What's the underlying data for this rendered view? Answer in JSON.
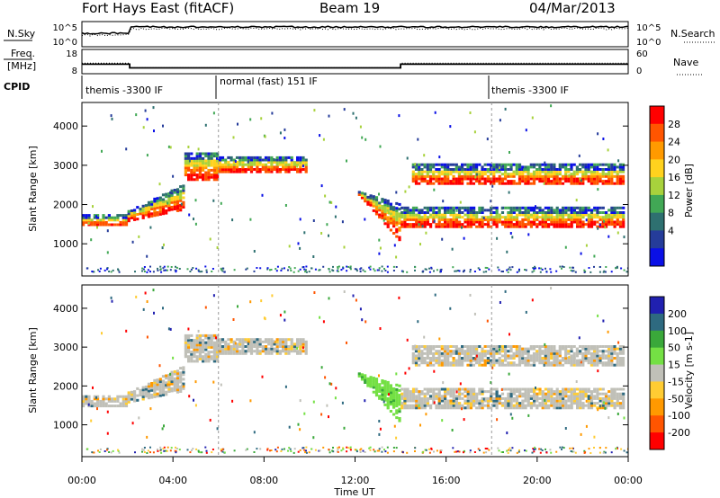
{
  "chart_data": {
    "type": "heatmap",
    "header": {
      "title": "Fort Hays East (fitACF)",
      "beam": "Beam 19",
      "date": "04/Mar/2013"
    },
    "x_axis": {
      "label": "Time UT",
      "ticks": [
        "00:00",
        "04:00",
        "08:00",
        "12:00",
        "16:00",
        "20:00",
        "00:00"
      ],
      "range_hours": [
        0,
        24
      ]
    },
    "noise_panel": {
      "left_label": "N.Sky",
      "right_label": "N.Search",
      "left_ticks": [
        "10^5",
        "10^0"
      ],
      "right_ticks": [
        "10^5",
        "10^0"
      ]
    },
    "freq_panel": {
      "left_label_1": "Freq.",
      "left_label_2": "[MHz]",
      "right_label": "Nave",
      "left_ticks": [
        "18",
        "8"
      ],
      "right_ticks": [
        "60",
        "0"
      ],
      "freq_steps": [
        {
          "start_h": 0,
          "end_h": 2.1,
          "mhz": 12.0
        },
        {
          "start_h": 2.1,
          "end_h": 14.0,
          "mhz": 10.3
        },
        {
          "start_h": 14.0,
          "end_h": 24,
          "mhz": 12.0
        }
      ],
      "nave_steps": [
        {
          "start_h": 0,
          "end_h": 2.1,
          "value": 27
        },
        {
          "start_h": 2.1,
          "end_h": 14.0,
          "value": 14
        },
        {
          "start_h": 14.0,
          "end_h": 24,
          "value": 27
        }
      ]
    },
    "cpid": {
      "label": "CPID",
      "segments": [
        {
          "start_h": 0,
          "end_h": 6.0,
          "text": "themis -3300 IF"
        },
        {
          "start_h": 6.0,
          "end_h": 18.0,
          "text": "normal (fast) 151 IF"
        },
        {
          "start_h": 18.0,
          "end_h": 24,
          "text": "themis -3300 IF"
        }
      ]
    },
    "panels": [
      {
        "name": "power",
        "ylabel": "Slant Range [km]",
        "yticks": [
          1000,
          2000,
          3000,
          4000
        ],
        "ylim": [
          180,
          4600
        ],
        "colorbar_label": "Power [dB]",
        "colorbar_ticks": [
          "28",
          "24",
          "20",
          "16",
          "12",
          "8",
          "4"
        ],
        "colorbar_colors": [
          "#ff0000",
          "#ff5500",
          "#ff9a00",
          "#ffd21e",
          "#a8d23c",
          "#41a855",
          "#2e7070",
          "#253c9a",
          "#0a10e6"
        ]
      },
      {
        "name": "velocity",
        "ylabel": "Slant Range [km]",
        "yticks": [
          1000,
          2000,
          3000,
          4000
        ],
        "ylim": [
          180,
          4600
        ],
        "colorbar_label": "Velocity [m s-1]",
        "colorbar_ticks": [
          "200",
          "100",
          "50",
          "15",
          "-15",
          "-50",
          "-100",
          "-200"
        ],
        "colorbar_colors": [
          "#2020b0",
          "#2e6a80",
          "#3aa83a",
          "#74e044",
          "#c0c0b8",
          "#ffcc33",
          "#ff9900",
          "#ff5500",
          "#ff0000"
        ]
      }
    ],
    "echo_bands": [
      {
        "start_h": 0.0,
        "end_h": 1.9,
        "range_km": [
          1450,
          1700
        ]
      },
      {
        "start_h": 2.0,
        "end_h": 4.5,
        "range_km": [
          1550,
          2500
        ]
      },
      {
        "start_h": 4.5,
        "end_h": 6.0,
        "range_km": [
          2600,
          3300
        ]
      },
      {
        "start_h": 6.0,
        "end_h": 9.8,
        "range_km": [
          2800,
          3200
        ]
      },
      {
        "start_h": 12.0,
        "end_h": 14.0,
        "range_km": [
          1000,
          2300
        ]
      },
      {
        "start_h": 14.0,
        "end_h": 23.8,
        "range_km": [
          1400,
          1900
        ]
      },
      {
        "start_h": 14.5,
        "end_h": 23.8,
        "range_km": [
          2500,
          3000
        ]
      }
    ]
  }
}
